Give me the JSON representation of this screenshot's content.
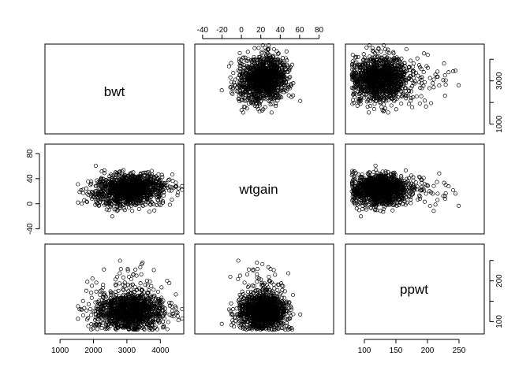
{
  "chart_data": {
    "type": "scatter",
    "title": "",
    "variables": [
      "bwt",
      "wtgain",
      "ppwt"
    ],
    "ranges": {
      "bwt": [
        550,
        4700
      ],
      "wtgain": [
        -48,
        95
      ],
      "ppwt": [
        70,
        290
      ]
    },
    "ticks": {
      "bwt": [
        1000,
        2000,
        3000,
        4000
      ],
      "wtgain": [
        -40,
        -20,
        0,
        20,
        40,
        60,
        80
      ],
      "ppwt": [
        100,
        150,
        200,
        250
      ]
    },
    "tick_labels": {
      "bwt_right": [
        "1000",
        "3000"
      ],
      "bwt_bottom": [
        "1000",
        "2000",
        "3000",
        "4000"
      ],
      "wtgain_top": [
        "-40",
        "-20",
        "0",
        "20",
        "40",
        "60",
        "80"
      ],
      "wtgain_left": [
        "-40",
        "0",
        "40",
        "80"
      ],
      "ppwt_bottom": [
        "100",
        "150",
        "200",
        "250"
      ],
      "ppwt_right": [
        "100",
        "200"
      ]
    },
    "distributions": {
      "bwt": {
        "mean": 3100,
        "sd": 520
      },
      "wtgain": {
        "mean": 22,
        "sd": 12
      },
      "ppwt": {
        "mean": 125,
        "sd": 22
      }
    },
    "layout": "3x3 scatterplot matrix, variable names on diagonal, alternating axes",
    "point_style": "open circles, black",
    "grid": false
  }
}
